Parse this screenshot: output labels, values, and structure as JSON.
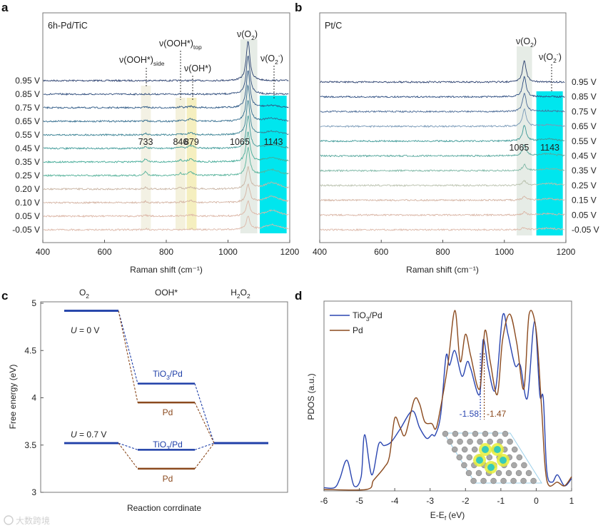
{
  "panel_labels": [
    "a",
    "b",
    "c",
    "d"
  ],
  "watermark": "大数跨境",
  "chart_data": [
    {
      "type": "line",
      "panel": "a",
      "title": "6h-Pd/TiC",
      "xlabel": "Raman shift (cm⁻¹)",
      "xlim": [
        400,
        1200
      ],
      "xticks": [
        "400",
        "600",
        "800",
        "1000",
        "1200"
      ],
      "series_labels": [
        "0.95 V",
        "0.85 V",
        "0.75 V",
        "0.65 V",
        "0.55 V",
        "0.45 V",
        "0.35 V",
        "0.25 V",
        "0.20 V",
        "0.10 V",
        "0.05 V",
        "-0.05 V"
      ],
      "series_colors": [
        "#2a3f6e",
        "#2c4a7a",
        "#2f5a86",
        "#336c8e",
        "#3a8294",
        "#3f9a98",
        "#45ab98",
        "#58b39b",
        "#c9b4a3",
        "#d4b3a2",
        "#dcb6a6",
        "#ddb9aa"
      ],
      "peaks": [
        {
          "position": 733,
          "label": "733",
          "width": 4,
          "amplitude": [
            0,
            0,
            2,
            2,
            2,
            3,
            5,
            6,
            3,
            2,
            2,
            2
          ]
        },
        {
          "position": 846,
          "label": "846",
          "width": 6,
          "amplitude": [
            0,
            0,
            1,
            1,
            1,
            2,
            3,
            3,
            2,
            1,
            1,
            0
          ]
        },
        {
          "position": 879,
          "label": "879",
          "width": 10,
          "amplitude": [
            0,
            0,
            2,
            3,
            3,
            4,
            4,
            5,
            3,
            3,
            2,
            1
          ]
        },
        {
          "position": 1065,
          "label": "1065",
          "width": 7,
          "amplitude": [
            56,
            55,
            52,
            50,
            48,
            46,
            42,
            38,
            30,
            25,
            20,
            18
          ]
        },
        {
          "position": 1143,
          "label": "1143",
          "width": 30,
          "amplitude": [
            0,
            0,
            3,
            4,
            5,
            5,
            6,
            8,
            9,
            9,
            8,
            7
          ]
        }
      ],
      "annotations": [
        {
          "main": "ν(OOH*)",
          "sub": "side"
        },
        {
          "main": "ν(OOH*)",
          "sub": "top"
        },
        {
          "main": "ν(OH*)",
          "sub": ""
        },
        {
          "main": "ν(O",
          "sub": "2",
          "end": ")"
        },
        {
          "main": "ν(O",
          "sub": "2",
          "sup": "-",
          "end": ")"
        }
      ]
    },
    {
      "type": "line",
      "panel": "b",
      "title": "Pt/C",
      "xlabel": "Raman shift (cm⁻¹)",
      "xlim": [
        400,
        1200
      ],
      "xticks": [
        "400",
        "600",
        "800",
        "1000",
        "1200"
      ],
      "series_labels": [
        "0.95 V",
        "0.85 V",
        "0.75 V",
        "0.65 V",
        "0.55 V",
        "0.45 V",
        "0.35 V",
        "0.25 V",
        "0.15 V",
        "0.05 V",
        "-0.05 V"
      ],
      "series_colors": [
        "#2a3f6e",
        "#2f4f82",
        "#4a6a96",
        "#7a9ab8",
        "#3f9a98",
        "#55a79c",
        "#7fb8a6",
        "#b9c1ad",
        "#d4b3a2",
        "#dab5a5",
        "#ddb9aa"
      ],
      "peaks": [
        {
          "position": 1065,
          "label": "1065",
          "width": 7,
          "amplitude": [
            30,
            28,
            26,
            24,
            22,
            15,
            8,
            6,
            5,
            4,
            3
          ]
        },
        {
          "position": 1143,
          "label": "1143",
          "width": 30,
          "amplitude": [
            0,
            0,
            1,
            2,
            3,
            3,
            3,
            3,
            2,
            2,
            2
          ]
        }
      ],
      "annotations": [
        {
          "main": "ν(O",
          "sub": "2",
          "end": ")"
        },
        {
          "main": "ν(O",
          "sub": "2",
          "sup": "-",
          "end": ")"
        }
      ]
    },
    {
      "type": "line",
      "panel": "c",
      "ylabel": "Free energy (eV)",
      "xlabel": "Reaction corrdinate",
      "ylim": [
        3,
        5
      ],
      "yticks": [
        "3",
        "3.5",
        "4",
        "4.5",
        "5"
      ],
      "categories": [
        {
          "main": "O",
          "sub": "2"
        },
        {
          "main": "OOH*",
          "sub": ""
        },
        {
          "main": "H",
          "sub": "2",
          "end": "O",
          "sub2": "2"
        }
      ],
      "conditions": [
        {
          "label_u": "U",
          "label_rest": " = 0 V",
          "series": [
            {
              "name_main": "TiO",
              "name_sub": "3",
              "name_end": "/Pd",
              "color": "#1f3fa8",
              "values": [
                4.92,
                4.15,
                3.52
              ]
            },
            {
              "name_main": "Pd",
              "name_sub": "",
              "name_end": "",
              "color": "#8b4a1e",
              "values": [
                4.92,
                3.95,
                3.52
              ]
            }
          ]
        },
        {
          "label_u": "U",
          "label_rest": " = 0.7 V",
          "series": [
            {
              "name_main": "TiO",
              "name_sub": "3",
              "name_end": "/Pd",
              "color": "#1f3fa8",
              "values": [
                3.52,
                3.45,
                3.52
              ]
            },
            {
              "name_main": "Pd",
              "name_sub": "",
              "name_end": "",
              "color": "#8b4a1e",
              "values": [
                3.52,
                3.25,
                3.52
              ]
            }
          ]
        }
      ]
    },
    {
      "type": "line",
      "panel": "d",
      "ylabel": "PDOS (a.u.)",
      "xlabel_main": "E-E",
      "xlabel_sub": "f",
      "xlabel_end": " (eV)",
      "xlim": [
        -6,
        1
      ],
      "xticks": [
        "-6",
        "-5",
        "-4",
        "-3",
        "-2",
        "-1",
        "0",
        "1"
      ],
      "legend": "top-left",
      "series": [
        {
          "name_main": "TiO",
          "name_sub": "3",
          "name_end": "/Pd",
          "color": "#2a45b0",
          "x": [
            -6,
            -5.7,
            -5.55,
            -5.35,
            -5.15,
            -4.95,
            -4.85,
            -4.65,
            -4.45,
            -4.3,
            -4.1,
            -3.85,
            -3.5,
            -3.3,
            -3.1,
            -2.95,
            -2.85,
            -2.7,
            -2.55,
            -2.45,
            -2.3,
            -2.1,
            -1.95,
            -1.85,
            -1.6,
            -1.5,
            -1.35,
            -1.15,
            -0.95,
            -0.8,
            -0.6,
            -0.45,
            -0.25,
            -0.05,
            0.1,
            0.2,
            0.3,
            0.45,
            0.6,
            0.8,
            1.0
          ],
          "y": [
            0.01,
            0.01,
            0.06,
            0.16,
            0.02,
            0.07,
            0.3,
            0.08,
            0.25,
            0.24,
            0.26,
            0.33,
            0.43,
            0.34,
            0.28,
            0.3,
            0.3,
            0.41,
            0.73,
            0.68,
            0.76,
            0.62,
            0.7,
            0.66,
            0.52,
            0.82,
            0.66,
            0.55,
            0.95,
            0.85,
            0.68,
            0.68,
            0.5,
            0.92,
            0.52,
            0.5,
            0.1,
            0.04,
            0.08,
            0.02,
            0.06
          ],
          "d_band_center": "-1.58",
          "d_band_value": -1.58
        },
        {
          "name_main": "Pd",
          "name_sub": "",
          "name_end": "",
          "color": "#8b4a1e",
          "x": [
            -6,
            -4.8,
            -4.6,
            -4.3,
            -4.15,
            -4.0,
            -3.85,
            -3.7,
            -3.45,
            -3.3,
            -3.15,
            -2.95,
            -2.85,
            -2.75,
            -2.5,
            -2.3,
            -2.15,
            -2.0,
            -1.85,
            -1.6,
            -1.45,
            -1.3,
            -1.1,
            -0.95,
            -0.75,
            -0.55,
            -0.35,
            -0.2,
            0.0,
            0.15,
            0.3,
            0.6,
            0.8,
            1.0
          ],
          "y": [
            0.0,
            0.0,
            0.05,
            0.12,
            0.18,
            0.39,
            0.34,
            0.3,
            0.49,
            0.47,
            0.37,
            0.36,
            0.33,
            0.4,
            0.68,
            0.98,
            0.7,
            0.85,
            0.73,
            0.55,
            0.87,
            0.7,
            0.52,
            0.82,
            0.96,
            0.8,
            0.55,
            0.96,
            0.87,
            0.45,
            0.05,
            0.04,
            0.02,
            0.07
          ],
          "d_band_center": "-1.47",
          "d_band_value": -1.47
        }
      ]
    }
  ]
}
